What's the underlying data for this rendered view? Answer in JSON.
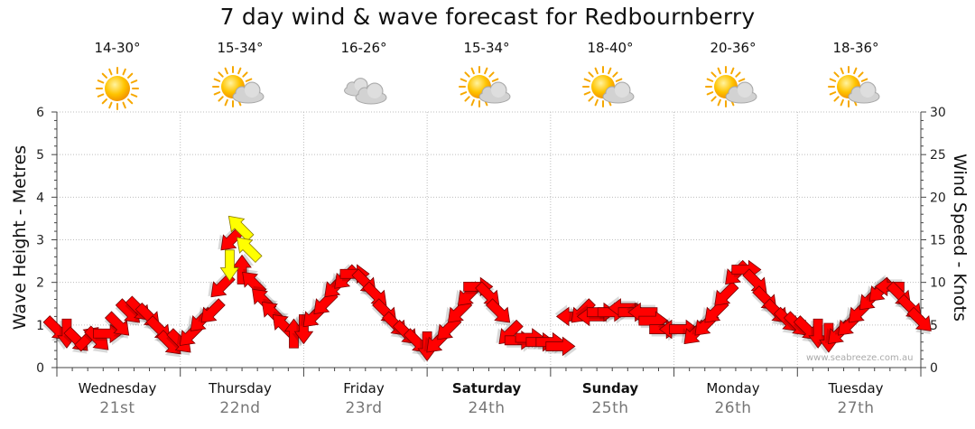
{
  "title": "7 day wind & wave forecast for Redbournberry",
  "credit": "www.seabreeze.com.au",
  "colors": {
    "arrow": "#ff0000",
    "highlight_arrow": "#ffff00",
    "grid": "#b0b0b0"
  },
  "days": [
    {
      "name": "Wednesday",
      "date": "21st",
      "temps": "14-30°",
      "icon": "sun-icon",
      "bold": false
    },
    {
      "name": "Thursday",
      "date": "22nd",
      "temps": "15-34°",
      "icon": "sun-cloud-icon",
      "bold": false
    },
    {
      "name": "Friday",
      "date": "23rd",
      "temps": "16-26°",
      "icon": "cloud-icon",
      "bold": false
    },
    {
      "name": "Saturday",
      "date": "24th",
      "temps": "15-34°",
      "icon": "sun-cloud-icon",
      "bold": true
    },
    {
      "name": "Sunday",
      "date": "25th",
      "temps": "18-40°",
      "icon": "sun-cloud-icon",
      "bold": true
    },
    {
      "name": "Monday",
      "date": "26th",
      "temps": "20-36°",
      "icon": "sun-cloud-icon",
      "bold": false
    },
    {
      "name": "Tuesday",
      "date": "27th",
      "temps": "18-36°",
      "icon": "sun-cloud-icon",
      "bold": false
    }
  ],
  "chart_data": {
    "type": "line",
    "title": "7 day wind & wave forecast for Redbournberry",
    "ylabel_left": "Wave Height - Metres",
    "ylabel_right": "Wind Speed - Knots",
    "ylim_left": [
      0,
      6
    ],
    "ylim_right": [
      0,
      30
    ],
    "yticks_left": [
      "0",
      "1",
      "2",
      "3",
      "4",
      "5",
      "6"
    ],
    "yticks_right": [
      "0",
      "5",
      "10",
      "15",
      "20",
      "25",
      "30"
    ],
    "grid": true,
    "x_unit": "days from start of Wednesday",
    "series": [
      {
        "kind": "wind arrows (speed in knots, direction shown by arrow)",
        "points": [
          [
            0.0,
            4.5,
            "SE"
          ],
          [
            0.12,
            4.0,
            "S"
          ],
          [
            0.25,
            3.2,
            "SE"
          ],
          [
            0.38,
            3.5,
            "NE"
          ],
          [
            0.5,
            3.3,
            "SE"
          ],
          [
            0.62,
            4.0,
            "E"
          ],
          [
            0.75,
            5.0,
            "SE"
          ],
          [
            0.88,
            6.5,
            "SE"
          ],
          [
            1.0,
            6.8,
            "SE"
          ],
          [
            1.12,
            6.0,
            "SE"
          ],
          [
            1.25,
            4.5,
            "SE"
          ],
          [
            1.38,
            2.8,
            "SE"
          ],
          [
            1.5,
            3.0,
            "SE"
          ],
          [
            1.62,
            3.8,
            "SW"
          ],
          [
            1.75,
            5.5,
            "SW"
          ],
          [
            1.88,
            6.5,
            "SW"
          ],
          [
            2.0,
            9.5,
            "SW"
          ],
          [
            2.12,
            15.0,
            "SW"
          ],
          [
            2.25,
            11.5,
            "N"
          ],
          [
            2.38,
            10.0,
            "NW"
          ],
          [
            2.5,
            8.0,
            "NW"
          ],
          [
            2.62,
            6.5,
            "NW"
          ],
          [
            2.75,
            5.0,
            "NW"
          ],
          [
            2.88,
            4.0,
            "N"
          ],
          [
            3.0,
            4.5,
            "S"
          ],
          [
            3.12,
            6.0,
            "SW"
          ],
          [
            3.25,
            7.5,
            "SW"
          ],
          [
            3.38,
            9.5,
            "SW"
          ],
          [
            3.5,
            10.5,
            "SW"
          ],
          [
            3.62,
            11.0,
            "E"
          ],
          [
            3.75,
            10.0,
            "SE"
          ],
          [
            3.88,
            8.5,
            "SE"
          ],
          [
            4.0,
            6.5,
            "SE"
          ],
          [
            4.12,
            5.0,
            "SE"
          ],
          [
            4.25,
            4.0,
            "SE"
          ],
          [
            4.38,
            3.0,
            "SE"
          ],
          [
            4.5,
            2.5,
            "S"
          ],
          [
            4.62,
            3.0,
            "SW"
          ],
          [
            4.75,
            4.5,
            "SW"
          ],
          [
            4.88,
            6.5,
            "SW"
          ],
          [
            5.0,
            8.5,
            "SW"
          ],
          [
            5.12,
            9.5,
            "E"
          ],
          [
            5.25,
            8.5,
            "SE"
          ],
          [
            5.38,
            6.5,
            "SE"
          ],
          [
            5.5,
            4.0,
            "SW"
          ],
          [
            5.62,
            3.2,
            "E"
          ],
          [
            5.75,
            3.5,
            "E"
          ],
          [
            5.88,
            3.0,
            "E"
          ],
          [
            6.0,
            3.0,
            "E"
          ],
          [
            6.12,
            2.5,
            "E"
          ],
          [
            6.25,
            6.0,
            "W"
          ],
          [
            6.38,
            6.5,
            "SW"
          ],
          [
            6.5,
            6.0,
            "W"
          ],
          [
            6.62,
            6.5,
            "E"
          ],
          [
            6.75,
            6.5,
            "E"
          ],
          [
            6.88,
            7.0,
            "W"
          ],
          [
            7.0,
            6.5,
            "E"
          ],
          [
            7.12,
            6.5,
            "W"
          ],
          [
            7.25,
            5.5,
            "E"
          ],
          [
            7.38,
            4.5,
            "E"
          ],
          [
            7.5,
            4.5,
            "W"
          ],
          [
            7.62,
            4.5,
            "E"
          ],
          [
            7.75,
            4.0,
            "SW"
          ],
          [
            7.88,
            5.0,
            "SW"
          ],
          [
            8.0,
            6.5,
            "SW"
          ],
          [
            8.12,
            8.5,
            "SW"
          ],
          [
            8.25,
            11.0,
            "SW"
          ],
          [
            8.38,
            11.5,
            "E"
          ],
          [
            8.5,
            10.0,
            "SE"
          ],
          [
            8.62,
            8.0,
            "SE"
          ],
          [
            8.75,
            6.5,
            "SE"
          ],
          [
            8.88,
            5.5,
            "SE"
          ],
          [
            9.0,
            5.0,
            "SE"
          ],
          [
            9.12,
            4.5,
            "SE"
          ],
          [
            9.25,
            4.0,
            "S"
          ],
          [
            9.38,
            3.5,
            "S"
          ],
          [
            9.5,
            4.0,
            "SW"
          ],
          [
            9.62,
            5.0,
            "SW"
          ],
          [
            9.75,
            6.5,
            "SW"
          ],
          [
            9.88,
            8.0,
            "SW"
          ],
          [
            10.0,
            9.0,
            "SW"
          ],
          [
            10.12,
            9.5,
            "W"
          ],
          [
            10.25,
            8.5,
            "SE"
          ],
          [
            10.38,
            7.0,
            "SE"
          ],
          [
            10.5,
            5.5,
            "SE"
          ]
        ]
      },
      {
        "kind": "highlighted gust arrows",
        "points": [
          [
            2.1,
            12.0,
            "S"
          ],
          [
            2.22,
            16.5,
            "NW"
          ],
          [
            2.32,
            14.0,
            "NW"
          ]
        ]
      }
    ]
  }
}
